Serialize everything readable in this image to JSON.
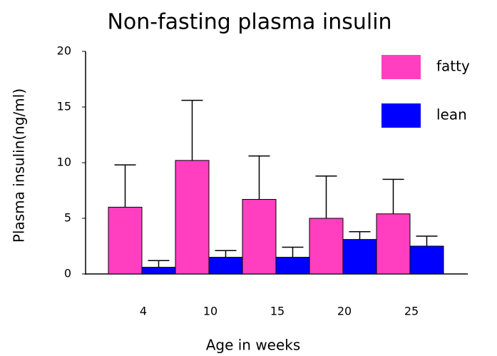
{
  "chart_data": {
    "type": "bar",
    "title": "Non-fasting plasma insulin",
    "x_label": "Age in weeks",
    "y_label": "Plasma insulin(ng/ml)",
    "categories": [
      "4",
      "10",
      "15",
      "20",
      "25"
    ],
    "series": [
      {
        "name": "fatty",
        "color": "#ff3fbf",
        "values": [
          6.0,
          10.2,
          6.7,
          5.0,
          5.4
        ],
        "errors": [
          3.8,
          5.4,
          3.9,
          3.8,
          3.1
        ]
      },
      {
        "name": "lean",
        "color": "#0000ff",
        "values": [
          0.6,
          1.5,
          1.5,
          3.1,
          2.5
        ],
        "errors": [
          0.6,
          0.6,
          0.9,
          0.7,
          0.9
        ]
      }
    ],
    "ylim": [
      0,
      20
    ],
    "yticks": [
      0,
      5,
      10,
      15,
      20
    ],
    "legend": "upper right"
  }
}
